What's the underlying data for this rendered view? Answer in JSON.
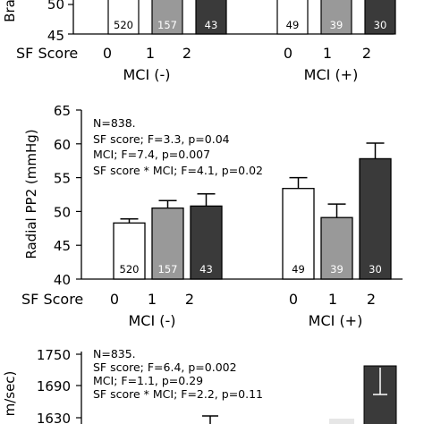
{
  "chart_data": [
    {
      "type": "bar",
      "panel": "top (cropped)",
      "ylabel": "Bra",
      "ylim": [
        45,
        55
      ],
      "yticks": [
        45,
        50
      ],
      "x_title": "SF Score",
      "sf_levels": [
        "0",
        "1",
        "2"
      ],
      "groups": [
        "MCI (-)",
        "MCI (+)"
      ],
      "n_labels": [
        [
          "520",
          "157",
          "43"
        ],
        [
          "49",
          "39",
          "30"
        ]
      ],
      "colors": [
        "#ffffff",
        "#999999",
        "#3a3a3a"
      ]
    },
    {
      "type": "bar",
      "panel": "middle",
      "ylabel": "Radial PP2 (mmHg)",
      "ylim": [
        40,
        65
      ],
      "yticks": [
        40,
        45,
        50,
        55,
        60,
        65
      ],
      "stats": [
        "N=838.",
        "SF score; F=3.3, p=0.04",
        "MCI; F=7.4, p=0.007",
        "SF score * MCI; F=4.1, p=0.02"
      ],
      "x_title": "SF Score",
      "sf_levels": [
        "0",
        "1",
        "2"
      ],
      "groups": [
        "MCI (-)",
        "MCI (+)"
      ],
      "series": [
        {
          "group": "MCI (-)",
          "values": [
            48.3,
            50.5,
            50.8
          ],
          "errors": [
            0.6,
            1.1,
            1.8
          ]
        },
        {
          "group": "MCI (+)",
          "values": [
            53.4,
            49.1,
            57.8
          ],
          "errors": [
            1.6,
            2.0,
            2.3
          ]
        }
      ],
      "n_labels": [
        [
          "520",
          "157",
          "43"
        ],
        [
          "49",
          "39",
          "30"
        ]
      ],
      "colors": [
        "#ffffff",
        "#999999",
        "#3a3a3a"
      ]
    },
    {
      "type": "bar",
      "panel": "bottom (cropped)",
      "ylabel": "m/sec)",
      "ylim": [
        1630,
        1750
      ],
      "yticks": [
        1630,
        1690,
        1750
      ],
      "stats": [
        "N=835.",
        "SF score; F=6.4, p=0.002",
        "MCI; F=1.1, p=0.29",
        "SF score * MCI; F=2.2, p=0.11"
      ],
      "series": [
        {
          "group": "MCI (+)",
          "sf": "2",
          "values": [
            1720
          ]
        }
      ],
      "colors": [
        "#ffffff",
        "#999999",
        "#3a3a3a"
      ]
    }
  ]
}
